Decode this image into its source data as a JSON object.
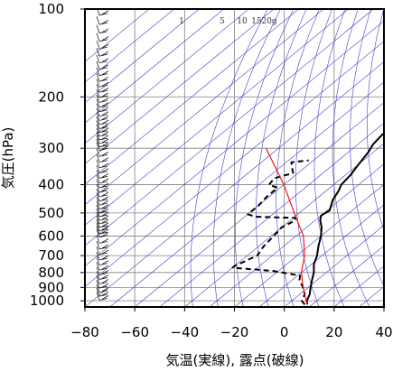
{
  "chart_data": {
    "type": "line",
    "chart_kind": "skew-T log-p sounding",
    "xlabel": "気温(実線), 露点(破線)",
    "ylabel": "気圧(hPa)",
    "x_ticks": [
      -80,
      -60,
      -40,
      -20,
      0,
      20,
      40
    ],
    "xlim": [
      -80,
      40
    ],
    "y_ticks": [
      100,
      200,
      300,
      400,
      500,
      600,
      700,
      800,
      900,
      1000
    ],
    "ylim": [
      100,
      1050
    ],
    "y_scale": "log",
    "grid": true,
    "colors": {
      "temperature": "#000000",
      "dewpoint": "#000000",
      "parcel": "#ff0000",
      "isotherms": "#4040cc",
      "adiabats": "#4040cc",
      "mixing_ratio": "#888888",
      "grid": "#808080"
    },
    "mixing_ratio_labels": [
      "1",
      "5",
      "10",
      "15",
      "20g"
    ],
    "mixing_ratio_values": [
      1,
      5,
      10,
      15,
      20
    ],
    "series": [
      {
        "line": "solid",
        "x_units": "°C",
        "points": [
          {
            "p": 1030,
            "x": 8
          },
          {
            "p": 1000,
            "x": 6
          },
          {
            "p": 950,
            "x": 4
          },
          {
            "p": 900,
            "x": 1
          },
          {
            "p": 850,
            "x": -2
          },
          {
            "p": 800,
            "x": -5
          },
          {
            "p": 750,
            "x": -9
          },
          {
            "p": 700,
            "x": -12
          },
          {
            "p": 650,
            "x": -16
          },
          {
            "p": 600,
            "x": -20
          },
          {
            "p": 560,
            "x": -24
          },
          {
            "p": 530,
            "x": -28
          },
          {
            "p": 510,
            "x": -30
          },
          {
            "p": 490,
            "x": -29
          },
          {
            "p": 470,
            "x": -31
          },
          {
            "p": 450,
            "x": -33
          },
          {
            "p": 420,
            "x": -35
          },
          {
            "p": 400,
            "x": -37
          },
          {
            "p": 370,
            "x": -38
          },
          {
            "p": 340,
            "x": -40
          },
          {
            "p": 310,
            "x": -42
          },
          {
            "p": 290,
            "x": -44
          },
          {
            "p": 270,
            "x": -45
          },
          {
            "p": 250,
            "x": -45
          },
          {
            "p": 230,
            "x": -46
          },
          {
            "p": 215,
            "x": -47
          },
          {
            "p": 200,
            "x": -47
          },
          {
            "p": 185,
            "x": -49
          },
          {
            "p": 170,
            "x": -50
          },
          {
            "p": 160,
            "x": -52
          },
          {
            "p": 150,
            "x": -53
          },
          {
            "p": 140,
            "x": -54
          },
          {
            "p": 130,
            "x": -56
          },
          {
            "p": 120,
            "x": -58
          },
          {
            "p": 110,
            "x": -60
          },
          {
            "p": 103,
            "x": -60
          },
          {
            "p": 100,
            "x": -59
          }
        ]
      },
      {
        "line": "dashed",
        "x_units": "°C",
        "points": [
          {
            "p": 1030,
            "x": 7
          },
          {
            "p": 1000,
            "x": 4
          },
          {
            "p": 950,
            "x": 2
          },
          {
            "p": 900,
            "x": -2
          },
          {
            "p": 850,
            "x": -7
          },
          {
            "p": 820,
            "x": -9
          },
          {
            "p": 790,
            "x": -22
          },
          {
            "p": 770,
            "x": -40
          },
          {
            "p": 760,
            "x": -40
          },
          {
            "p": 700,
            "x": -36
          },
          {
            "p": 650,
            "x": -38
          },
          {
            "p": 600,
            "x": -39
          },
          {
            "p": 560,
            "x": -40
          },
          {
            "p": 530,
            "x": -38
          },
          {
            "p": 520,
            "x": -39
          },
          {
            "p": 515,
            "x": -56
          },
          {
            "p": 505,
            "x": -60
          },
          {
            "p": 470,
            "x": -60
          },
          {
            "p": 440,
            "x": -61
          },
          {
            "p": 410,
            "x": -61
          },
          {
            "p": 400,
            "x": -66
          },
          {
            "p": 380,
            "x": -67
          },
          {
            "p": 365,
            "x": -62
          },
          {
            "p": 345,
            "x": -66
          },
          {
            "p": 335,
            "x": -68
          },
          {
            "p": 330,
            "x": -62
          }
        ]
      },
      {
        "line": "solid",
        "x_units": "°C",
        "points": [
          {
            "p": 1030,
            "x": 8
          },
          {
            "p": 900,
            "x": -2
          },
          {
            "p": 800,
            "x": -10
          },
          {
            "p": 700,
            "x": -17
          },
          {
            "p": 600,
            "x": -27
          },
          {
            "p": 500,
            "x": -42
          },
          {
            "p": 400,
            "x": -60
          },
          {
            "p": 300,
            "x": -85
          }
        ]
      }
    ]
  }
}
